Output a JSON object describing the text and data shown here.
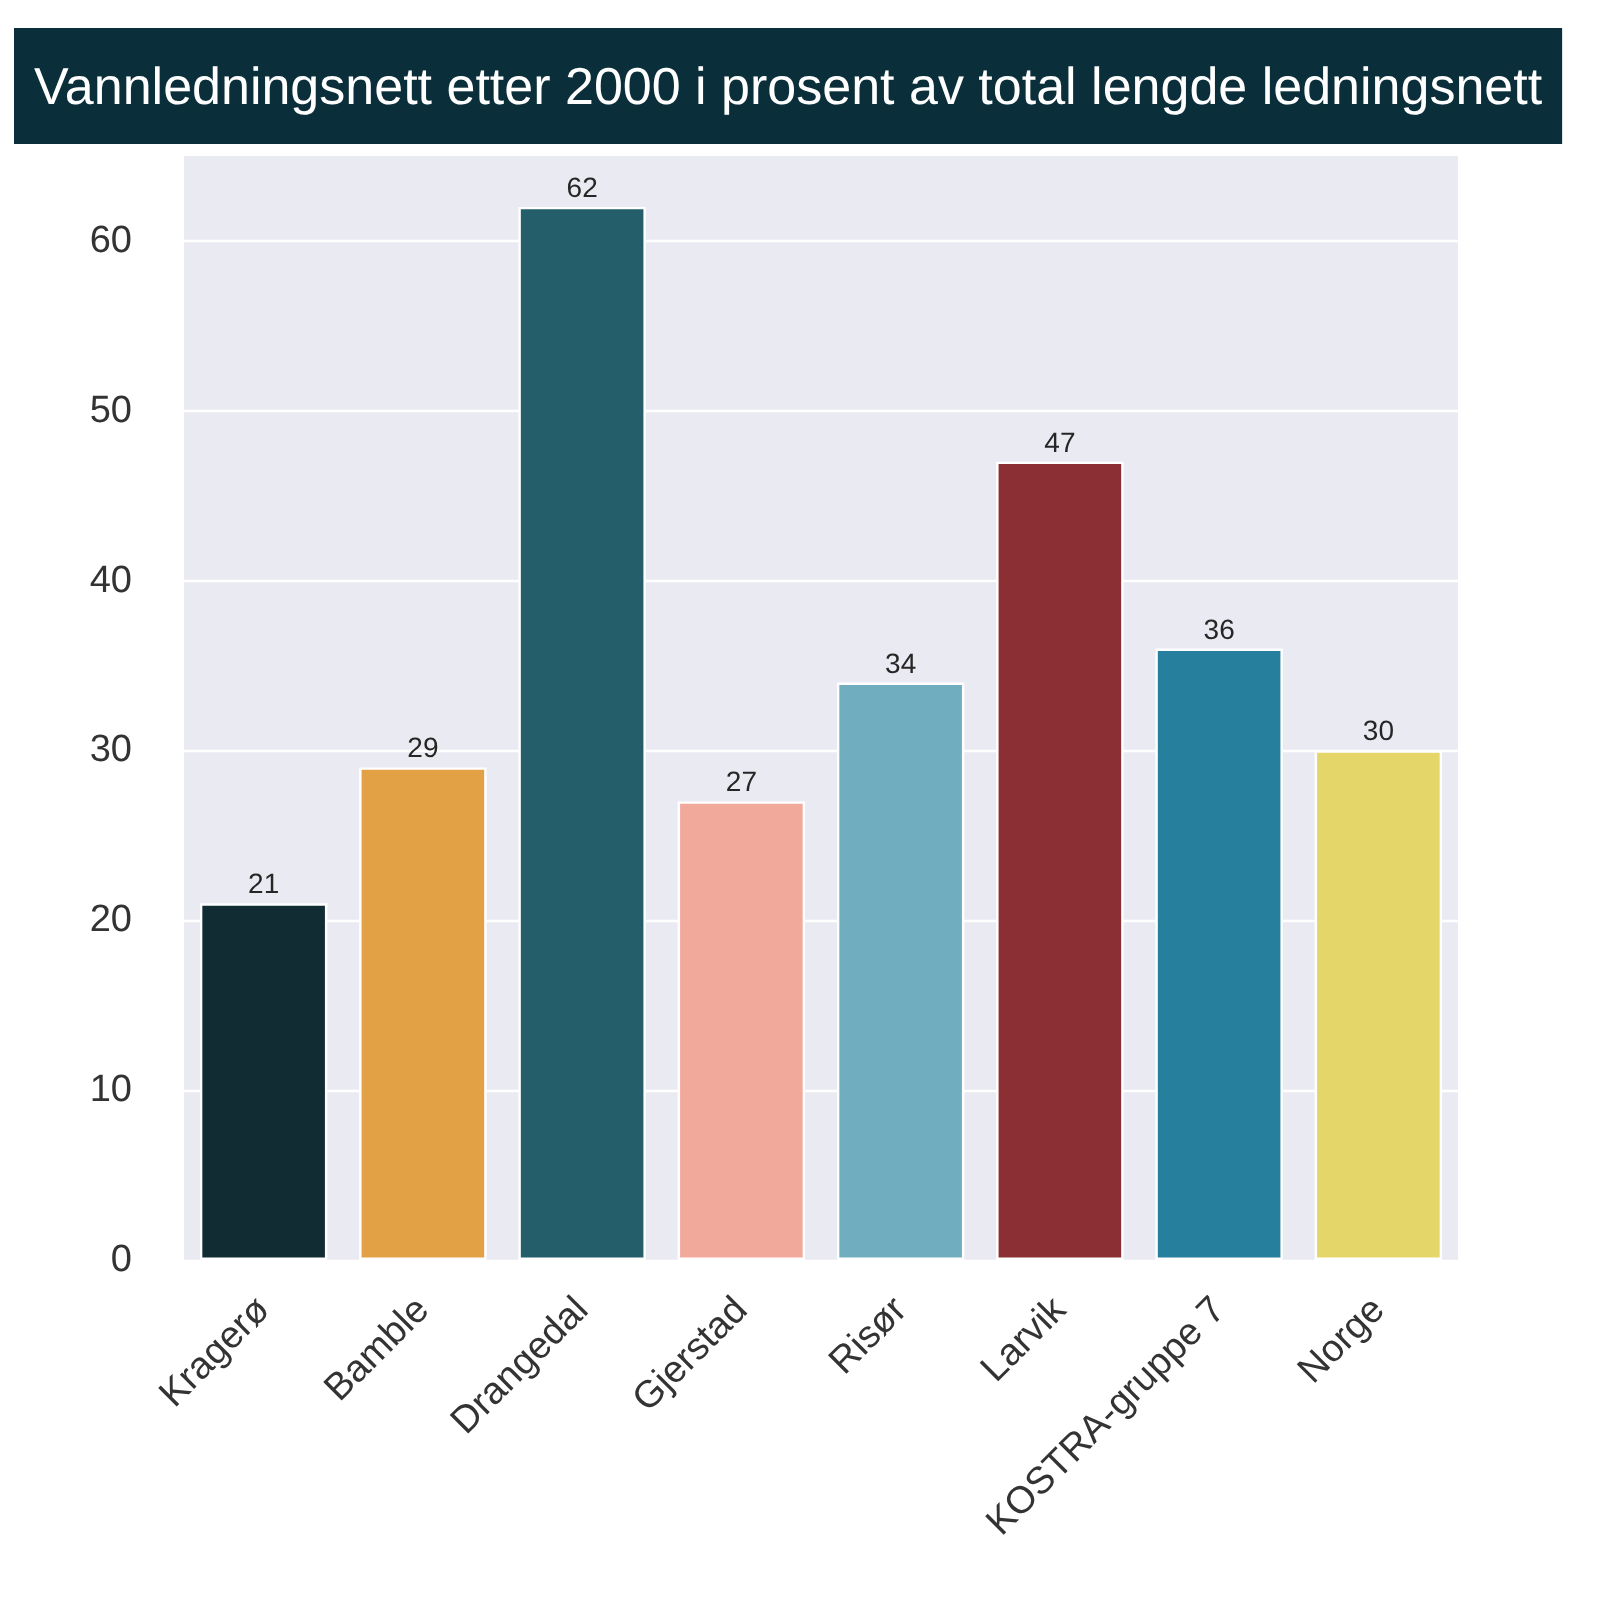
{
  "chart_data": {
    "type": "bar",
    "title": "Vannledningsnett etter 2000 i prosent av total lengde ledningsnett",
    "categories": [
      "Kragerø",
      "Bamble",
      "Drangedal",
      "Gjerstad",
      "Risør",
      "Larvik",
      "KOSTRA-gruppe 7",
      "Norge"
    ],
    "values": [
      21,
      29,
      62,
      27,
      34,
      47,
      36,
      30
    ],
    "colors": [
      "#122c34",
      "#e3a145",
      "#245e6b",
      "#f1a99b",
      "#70aebf",
      "#8b2f35",
      "#257f9d",
      "#e5d66a"
    ],
    "ylim": [
      0,
      65
    ],
    "yticks": [
      0,
      10,
      20,
      30,
      40,
      50,
      60
    ],
    "grid": "y",
    "data_labels": true
  }
}
